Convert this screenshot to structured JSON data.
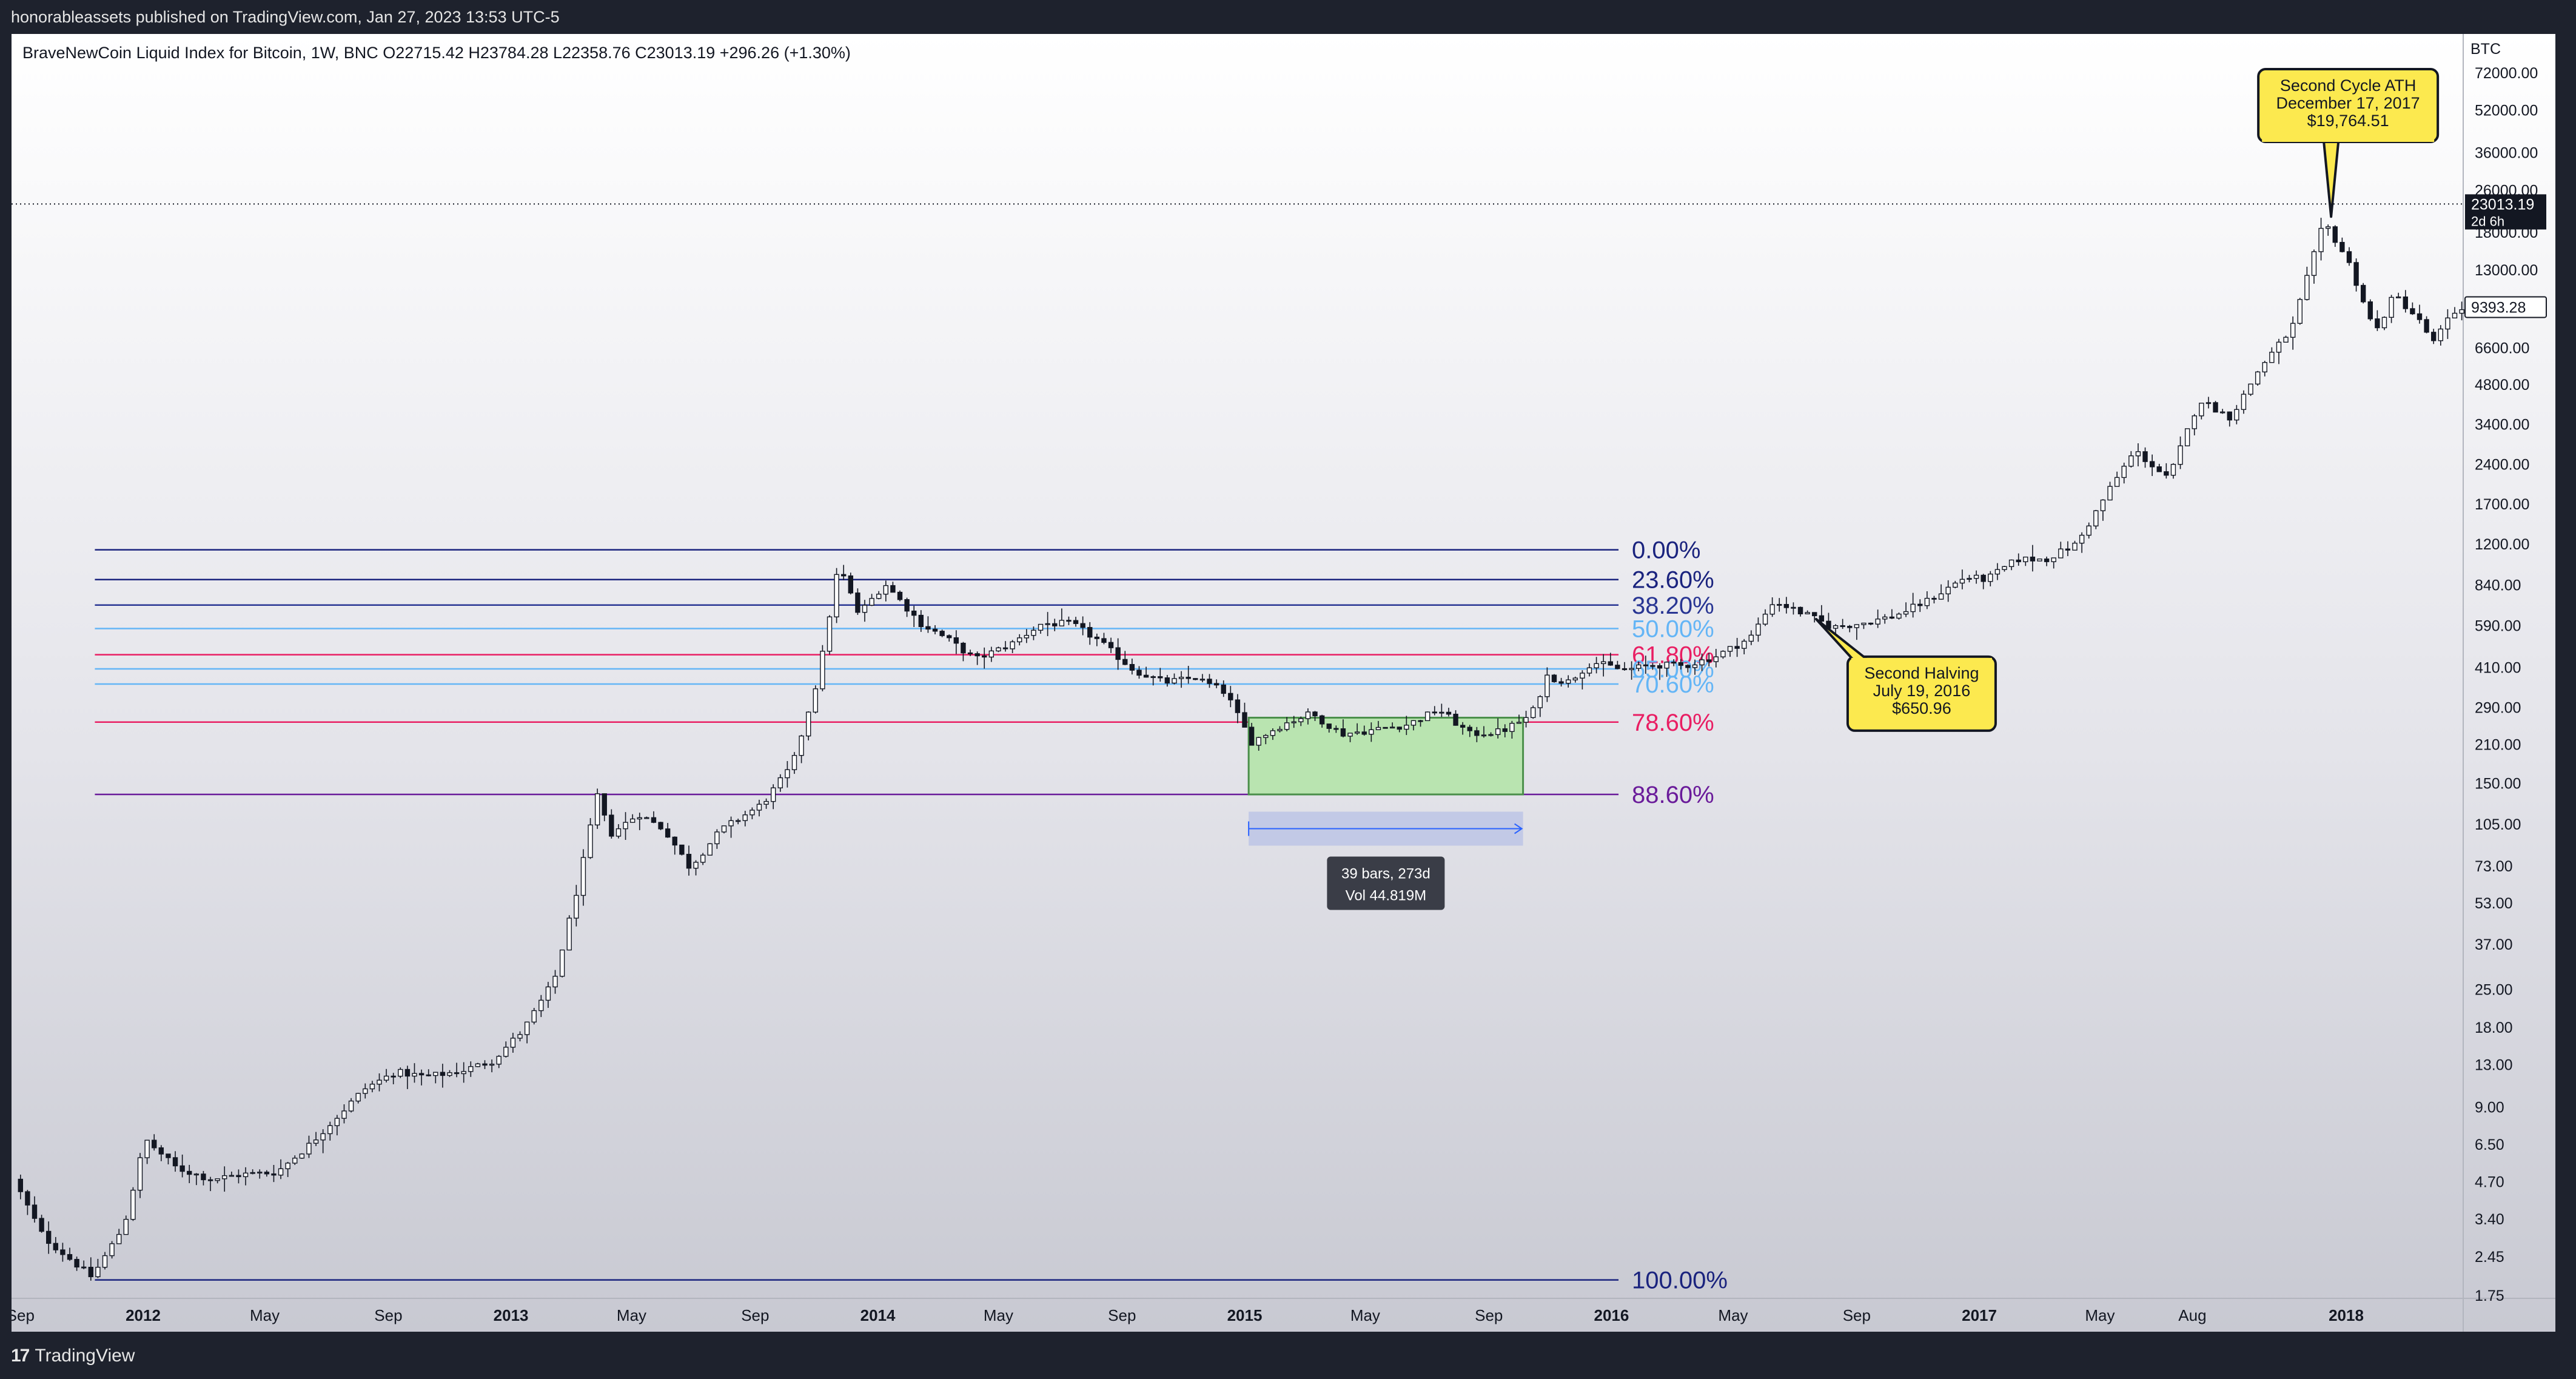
{
  "header": {
    "published": "honorableassets published on TradingView.com, Jan 27, 2023 13:53 UTC-5"
  },
  "footer": {
    "brand_logo": "17",
    "brand_name": "TradingView"
  },
  "chart_data": {
    "type": "candlestick",
    "title": "BraveNewCoin Liquid Index for Bitcoin, 1W, BNC",
    "ohlc_text": "O22715.42  H23784.28  L22358.76  C23013.19  +296.26 (+1.30%)",
    "scale": "log",
    "currency": "BTC",
    "y_ticks": [
      "72000.00",
      "52000.00",
      "36000.00",
      "26000.00",
      "18000.00",
      "13000.00",
      "9393.28",
      "6600.00",
      "4800.00",
      "3400.00",
      "2400.00",
      "1700.00",
      "1200.00",
      "840.00",
      "590.00",
      "410.00",
      "290.00",
      "210.00",
      "150.00",
      "105.00",
      "73.00",
      "53.00",
      "37.00",
      "25.00",
      "18.00",
      "13.00",
      "9.00",
      "6.50",
      "4.70",
      "3.40",
      "2.45",
      "1.75"
    ],
    "y_tick_values": [
      72000,
      52000,
      36000,
      26000,
      18000,
      13000,
      9393.28,
      6600,
      4800,
      3400,
      2400,
      1700,
      1200,
      840,
      590,
      410,
      290,
      210,
      150,
      105,
      73,
      53,
      37,
      25,
      18,
      13,
      9,
      6.5,
      4.7,
      3.4,
      2.45,
      1.75
    ],
    "x_ticks": [
      {
        "label": "Sep",
        "date": "2011-09-01",
        "bold": false
      },
      {
        "label": "2012",
        "date": "2012-01-01",
        "bold": true
      },
      {
        "label": "May",
        "date": "2012-05-01",
        "bold": false
      },
      {
        "label": "Sep",
        "date": "2012-09-01",
        "bold": false
      },
      {
        "label": "2013",
        "date": "2013-01-01",
        "bold": true
      },
      {
        "label": "May",
        "date": "2013-05-01",
        "bold": false
      },
      {
        "label": "Sep",
        "date": "2013-09-01",
        "bold": false
      },
      {
        "label": "2014",
        "date": "2014-01-01",
        "bold": true
      },
      {
        "label": "May",
        "date": "2014-05-01",
        "bold": false
      },
      {
        "label": "Sep",
        "date": "2014-09-01",
        "bold": false
      },
      {
        "label": "2015",
        "date": "2015-01-01",
        "bold": true
      },
      {
        "label": "May",
        "date": "2015-05-01",
        "bold": false
      },
      {
        "label": "Sep",
        "date": "2015-09-01",
        "bold": false
      },
      {
        "label": "2016",
        "date": "2016-01-01",
        "bold": true
      },
      {
        "label": "May",
        "date": "2016-05-01",
        "bold": false
      },
      {
        "label": "Sep",
        "date": "2016-09-01",
        "bold": false
      },
      {
        "label": "2017",
        "date": "2017-01-01",
        "bold": true
      },
      {
        "label": "May",
        "date": "2017-05-01",
        "bold": false
      },
      {
        "label": "Aug",
        "date": "2017-08-01",
        "bold": false
      },
      {
        "label": "2018",
        "date": "2018-01-01",
        "bold": true
      }
    ],
    "price_path": [
      [
        "2011-09-01",
        4.8
      ],
      [
        "2011-10-01",
        2.9
      ],
      [
        "2011-11-18",
        2.05
      ],
      [
        "2011-12-20",
        3.2
      ],
      [
        "2012-01-10",
        6.8
      ],
      [
        "2012-02-10",
        5.3
      ],
      [
        "2012-03-15",
        4.8
      ],
      [
        "2012-04-15",
        5.0
      ],
      [
        "2012-05-20",
        5.1
      ],
      [
        "2012-06-20",
        6.4
      ],
      [
        "2012-08-15",
        10.5
      ],
      [
        "2012-09-15",
        12.2
      ],
      [
        "2012-10-15",
        11.7
      ],
      [
        "2012-11-20",
        12.3
      ],
      [
        "2012-12-20",
        13.4
      ],
      [
        "2013-01-20",
        17.5
      ],
      [
        "2013-02-20",
        27
      ],
      [
        "2013-03-15",
        60
      ],
      [
        "2013-04-05",
        140
      ],
      [
        "2013-04-15",
        95
      ],
      [
        "2013-05-15",
        115
      ],
      [
        "2013-06-10",
        100
      ],
      [
        "2013-07-05",
        72
      ],
      [
        "2013-08-05",
        100
      ],
      [
        "2013-09-15",
        125
      ],
      [
        "2013-10-15",
        175
      ],
      [
        "2013-11-10",
        380
      ],
      [
        "2013-11-30",
        1000
      ],
      [
        "2013-12-20",
        650
      ],
      [
        "2014-01-15",
        850
      ],
      [
        "2014-02-20",
        600
      ],
      [
        "2014-03-20",
        520
      ],
      [
        "2014-04-15",
        440
      ],
      [
        "2014-05-20",
        500
      ],
      [
        "2014-06-20",
        600
      ],
      [
        "2014-07-20",
        600
      ],
      [
        "2014-08-15",
        520
      ],
      [
        "2014-09-20",
        400
      ],
      [
        "2014-10-20",
        360
      ],
      [
        "2014-11-20",
        375
      ],
      [
        "2014-12-20",
        330
      ],
      [
        "2015-01-15",
        215
      ],
      [
        "2015-02-15",
        250
      ],
      [
        "2015-03-15",
        275
      ],
      [
        "2015-04-15",
        230
      ],
      [
        "2015-05-15",
        238
      ],
      [
        "2015-06-20",
        250
      ],
      [
        "2015-07-20",
        285
      ],
      [
        "2015-08-20",
        230
      ],
      [
        "2015-09-20",
        235
      ],
      [
        "2015-10-20",
        270
      ],
      [
        "2015-11-05",
        380
      ],
      [
        "2015-11-25",
        360
      ],
      [
        "2015-12-20",
        430
      ],
      [
        "2016-01-20",
        400
      ],
      [
        "2016-02-20",
        420
      ],
      [
        "2016-03-20",
        415
      ],
      [
        "2016-04-20",
        450
      ],
      [
        "2016-05-25",
        530
      ],
      [
        "2016-06-17",
        730
      ],
      [
        "2016-07-19",
        651
      ],
      [
        "2016-08-15",
        580
      ],
      [
        "2016-09-15",
        605
      ],
      [
        "2016-10-15",
        640
      ],
      [
        "2016-11-20",
        740
      ],
      [
        "2016-12-25",
        900
      ],
      [
        "2017-01-15",
        880
      ],
      [
        "2017-02-15",
        1050
      ],
      [
        "2017-03-15",
        1050
      ],
      [
        "2017-04-15",
        1200
      ],
      [
        "2017-05-20",
        2000
      ],
      [
        "2017-06-12",
        2700
      ],
      [
        "2017-07-15",
        2100
      ],
      [
        "2017-08-15",
        4200
      ],
      [
        "2017-09-15",
        3600
      ],
      [
        "2017-10-15",
        5600
      ],
      [
        "2017-11-15",
        7800
      ],
      [
        "2017-12-17",
        19765
      ],
      [
        "2018-01-10",
        14000
      ],
      [
        "2018-02-06",
        7500
      ],
      [
        "2018-02-25",
        10500
      ],
      [
        "2018-03-20",
        8500
      ],
      [
        "2018-04-05",
        6900
      ],
      [
        "2018-04-20",
        8500
      ],
      [
        "2018-05-01",
        9393.28
      ]
    ],
    "current_price": {
      "value": 23013.19,
      "label": "23013.19",
      "countdown": "2d 6h"
    },
    "fib_levels": [
      {
        "label": "0.00%",
        "value": 1140,
        "color": "#1a237e"
      },
      {
        "label": "23.60%",
        "value": 880,
        "color": "#1a237e"
      },
      {
        "label": "38.20%",
        "value": 705,
        "color": "#283593"
      },
      {
        "label": "50.00%",
        "value": 575,
        "color": "#64b5f6"
      },
      {
        "label": "61.80%",
        "value": 458,
        "color": "#e91e63"
      },
      {
        "label": "65.00%",
        "value": 405,
        "color": "#64b5f6"
      },
      {
        "label": "70.60%",
        "value": 355,
        "color": "#64b5f6"
      },
      {
        "label": "78.60%",
        "value": 255,
        "color": "#e91e63"
      },
      {
        "label": "88.60%",
        "value": 136,
        "color": "#6a1b9a"
      },
      {
        "label": "100.00%",
        "value": 2.0,
        "color": "#1a237e"
      }
    ],
    "fib_range": {
      "start": "2011-11-14",
      "end": "2016-01-08"
    },
    "accumulation_box": {
      "start": "2015-01-05",
      "end": "2015-10-05",
      "top": 265,
      "bottom": 136
    },
    "date_range_measure": {
      "start": "2015-01-05",
      "end": "2015-10-05",
      "price": 101,
      "bars_text": "39 bars, 273d",
      "vol_text": "Vol 44.819M"
    },
    "callouts": [
      {
        "lines": [
          "Second Cycle ATH",
          "December 17, 2017",
          "$19,764.51"
        ],
        "date": "2017-12-17",
        "price": 19765,
        "pointer": "down"
      },
      {
        "lines": [
          "Second Halving",
          "July 19, 2016",
          "$650.96"
        ],
        "date": "2016-07-19",
        "price": 651,
        "pointer": "up"
      }
    ]
  }
}
